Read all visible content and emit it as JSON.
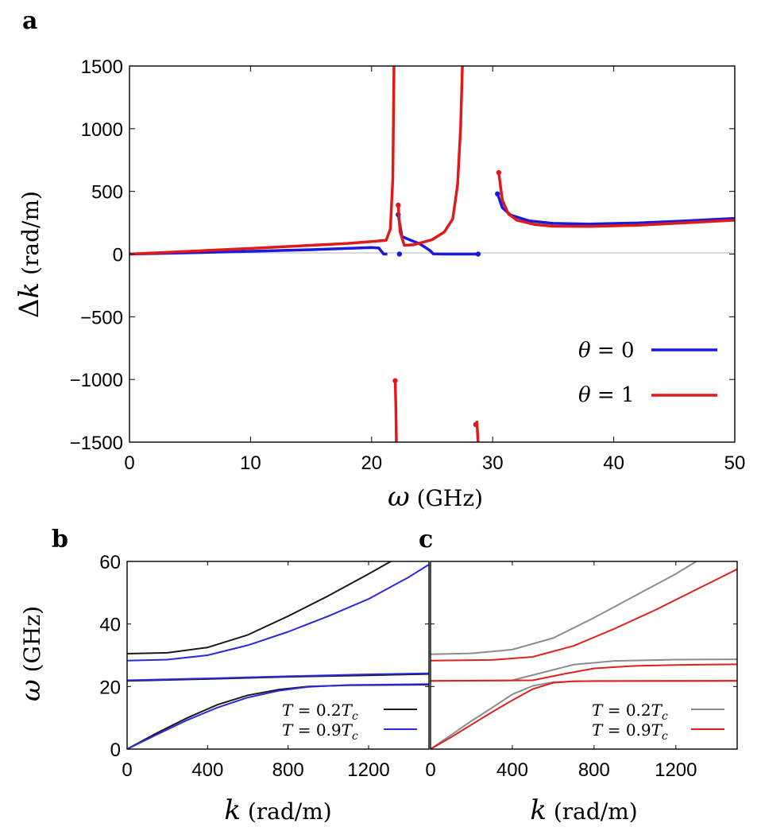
{
  "chart_data": [
    {
      "panel": "a",
      "type": "line",
      "xlabel": "ω (GHz)",
      "ylabel": "Δk (rad/m)",
      "xlim": [
        0,
        50
      ],
      "ylim": [
        -1500,
        1500
      ],
      "x_ticks": [
        "0",
        "10",
        "20",
        "30",
        "40",
        "50"
      ],
      "y_ticks": [
        "−1500",
        "−1000",
        "−500",
        "0",
        "500",
        "1000",
        "1500"
      ],
      "grid": false,
      "legend": "bottom-right",
      "series": [
        {
          "name": "θ = 0",
          "color": "#1a1adc",
          "segments": [
            [
              [
                0,
                0
              ],
              [
                5,
                10
              ],
              [
                10,
                22
              ],
              [
                15,
                35
              ],
              [
                18,
                45
              ],
              [
                20,
                52
              ],
              [
                20.6,
                48
              ],
              [
                21.0,
                0
              ],
              [
                21.3,
                0
              ]
            ],
            [
              [
                22.2,
                315
              ],
              [
                22.5,
                140
              ],
              [
                23.0,
                120
              ],
              [
                24.0,
                80
              ],
              [
                24.8,
                30
              ],
              [
                25.1,
                2
              ],
              [
                26,
                0
              ],
              [
                28.8,
                0
              ]
            ],
            [
              [
                30.4,
                480
              ],
              [
                30.8,
                370
              ],
              [
                31.5,
                310
              ],
              [
                33,
                265
              ],
              [
                35,
                245
              ],
              [
                38,
                240
              ],
              [
                42,
                248
              ],
              [
                46,
                265
              ],
              [
                50,
                285
              ]
            ]
          ],
          "markers": [
            [
              22.2,
              315
            ],
            [
              22.3,
              0
            ],
            [
              28.8,
              0
            ],
            [
              30.4,
              480
            ]
          ]
        },
        {
          "name": "θ = 1",
          "color": "#e01a1a",
          "segments": [
            [
              [
                0,
                0
              ],
              [
                5,
                22
              ],
              [
                10,
                45
              ],
              [
                15,
                70
              ],
              [
                18,
                85
              ],
              [
                20,
                100
              ],
              [
                21.2,
                110
              ],
              [
                21.55,
                200
              ],
              [
                21.75,
                600
              ],
              [
                21.85,
                1500
              ]
            ],
            [
              [
                21.95,
                -1010
              ],
              [
                22.0,
                -1200
              ],
              [
                22.05,
                -1500
              ]
            ],
            [
              [
                22.2,
                390
              ],
              [
                22.35,
                180
              ],
              [
                22.7,
                70
              ],
              [
                23.5,
                75
              ],
              [
                25,
                115
              ],
              [
                26,
                175
              ],
              [
                26.7,
                280
              ],
              [
                27.1,
                550
              ],
              [
                27.35,
                1000
              ],
              [
                27.5,
                1500
              ]
            ],
            [
              [
                28.7,
                -1330
              ],
              [
                28.75,
                -1420
              ],
              [
                28.8,
                -1500
              ]
            ],
            [
              [
                30.5,
                650
              ],
              [
                30.8,
                430
              ],
              [
                31.3,
                320
              ],
              [
                32,
                270
              ],
              [
                33.5,
                235
              ],
              [
                35,
                222
              ],
              [
                38,
                220
              ],
              [
                42,
                230
              ],
              [
                46,
                250
              ],
              [
                50,
                270
              ]
            ]
          ],
          "markers": [
            [
              21.95,
              -1010
            ],
            [
              22.2,
              390
            ],
            [
              28.6,
              -1360
            ],
            [
              30.5,
              650
            ]
          ]
        }
      ]
    },
    {
      "panel": "b",
      "type": "line",
      "xlabel": "k (rad/m)",
      "ylabel": "ω (GHz)",
      "xlim": [
        0,
        1500
      ],
      "ylim": [
        0,
        60
      ],
      "x_ticks": [
        "0",
        "400",
        "800",
        "1200"
      ],
      "y_ticks": [
        "0",
        "20",
        "40",
        "60"
      ],
      "legend": "bottom-right",
      "series": [
        {
          "name": "T = 0.2T_c",
          "color": "#1a1a1a",
          "segments": [
            [
              [
                0,
                30.5
              ],
              [
                200,
                30.8
              ],
              [
                400,
                32.5
              ],
              [
                600,
                36.5
              ],
              [
                800,
                42.5
              ],
              [
                1000,
                49
              ],
              [
                1200,
                56
              ],
              [
                1310,
                60
              ]
            ],
            [
              [
                0,
                21.8
              ],
              [
                400,
                22.4
              ],
              [
                800,
                23.1
              ],
              [
                1200,
                23.6
              ],
              [
                1500,
                24.0
              ]
            ],
            [
              [
                0,
                0
              ],
              [
                150,
                5.2
              ],
              [
                300,
                10
              ],
              [
                450,
                14.2
              ],
              [
                600,
                17.2
              ],
              [
                750,
                19
              ],
              [
                900,
                20
              ],
              [
                1100,
                20.4
              ],
              [
                1500,
                20.6
              ]
            ]
          ]
        },
        {
          "name": "T = 0.9T_c",
          "color": "#2a2adc",
          "segments": [
            [
              [
                0,
                28.3
              ],
              [
                200,
                28.6
              ],
              [
                400,
                30
              ],
              [
                600,
                33.2
              ],
              [
                800,
                37.5
              ],
              [
                1000,
                42.5
              ],
              [
                1200,
                48
              ],
              [
                1400,
                55
              ],
              [
                1500,
                59
              ]
            ],
            [
              [
                0,
                22.0
              ],
              [
                400,
                22.6
              ],
              [
                800,
                23.3
              ],
              [
                1200,
                23.9
              ],
              [
                1500,
                24.2
              ]
            ],
            [
              [
                0,
                0
              ],
              [
                150,
                4.7
              ],
              [
                300,
                9.3
              ],
              [
                450,
                13.3
              ],
              [
                600,
                16.5
              ],
              [
                750,
                18.6
              ],
              [
                900,
                19.9
              ],
              [
                1100,
                20.5
              ],
              [
                1500,
                20.8
              ]
            ]
          ]
        }
      ]
    },
    {
      "panel": "c",
      "type": "line",
      "xlabel": "k (rad/m)",
      "ylabel": "",
      "xlim": [
        0,
        1500
      ],
      "ylim": [
        0,
        60
      ],
      "x_ticks": [
        "0",
        "400",
        "800",
        "1200"
      ],
      "legend": "bottom-right",
      "series": [
        {
          "name": "T = 0.2T_c",
          "color": "#8c8c8c",
          "segments": [
            [
              [
                0,
                30.3
              ],
              [
                200,
                30.6
              ],
              [
                400,
                31.8
              ],
              [
                600,
                35.5
              ],
              [
                800,
                42
              ],
              [
                1000,
                49
              ],
              [
                1200,
                56
              ],
              [
                1300,
                60
              ]
            ],
            [
              [
                0,
                21.8
              ],
              [
                400,
                22
              ],
              [
                550,
                24.5
              ],
              [
                700,
                27
              ],
              [
                900,
                28.2
              ],
              [
                1200,
                28.6
              ],
              [
                1500,
                28.7
              ]
            ],
            [
              [
                0,
                0
              ],
              [
                100,
                4.5
              ],
              [
                200,
                9
              ],
              [
                300,
                13.2
              ],
              [
                400,
                17.5
              ],
              [
                500,
                20.2
              ],
              [
                600,
                21.4
              ],
              [
                800,
                21.8
              ],
              [
                1500,
                21.9
              ]
            ]
          ]
        },
        {
          "name": "T = 0.9T_c",
          "color": "#e02020",
          "segments": [
            [
              [
                0,
                28.3
              ],
              [
                300,
                28.5
              ],
              [
                500,
                29.5
              ],
              [
                700,
                33
              ],
              [
                900,
                38.5
              ],
              [
                1100,
                44.5
              ],
              [
                1300,
                51
              ],
              [
                1500,
                57.5
              ]
            ],
            [
              [
                0,
                21.8
              ],
              [
                500,
                22
              ],
              [
                650,
                24
              ],
              [
                800,
                25.8
              ],
              [
                1000,
                26.6
              ],
              [
                1200,
                26.9
              ],
              [
                1500,
                27.1
              ]
            ],
            [
              [
                0,
                0
              ],
              [
                100,
                3.8
              ],
              [
                200,
                7.8
              ],
              [
                300,
                11.8
              ],
              [
                400,
                15.6
              ],
              [
                500,
                19.2
              ],
              [
                600,
                21.2
              ],
              [
                700,
                21.7
              ],
              [
                1500,
                21.8
              ]
            ]
          ]
        }
      ]
    }
  ],
  "panels": {
    "a": {
      "letter": "a",
      "ylabel_prefix": "Δ",
      "ylabel_var": "k",
      "ylabel_unit": " (rad/m)",
      "xlabel_var": "ω",
      "xlabel_unit": " (GHz)"
    },
    "b": {
      "letter": "b",
      "ylabel_var": "ω",
      "ylabel_unit": " (GHz)",
      "xlabel_var": "k",
      "xlabel_unit": " (rad/m)"
    },
    "c": {
      "letter": "c",
      "xlabel_var": "k",
      "xlabel_unit": " (rad/m)"
    }
  },
  "legends": {
    "a": [
      {
        "var": "θ",
        "rest": " = 0",
        "color": "#1a1adc"
      },
      {
        "var": "θ",
        "rest": " = 1",
        "color": "#e01a1a"
      }
    ],
    "b": [
      {
        "var": "T",
        "mid": " = 0.2",
        "var2": "T",
        "sub": "c",
        "color": "#1a1a1a"
      },
      {
        "var": "T",
        "mid": " = 0.9",
        "var2": "T",
        "sub": "c",
        "color": "#2a2adc"
      }
    ],
    "c": [
      {
        "var": "T",
        "mid": " = 0.2",
        "var2": "T",
        "sub": "c",
        "color": "#8c8c8c"
      },
      {
        "var": "T",
        "mid": " = 0.9",
        "var2": "T",
        "sub": "c",
        "color": "#e02020"
      }
    ]
  }
}
